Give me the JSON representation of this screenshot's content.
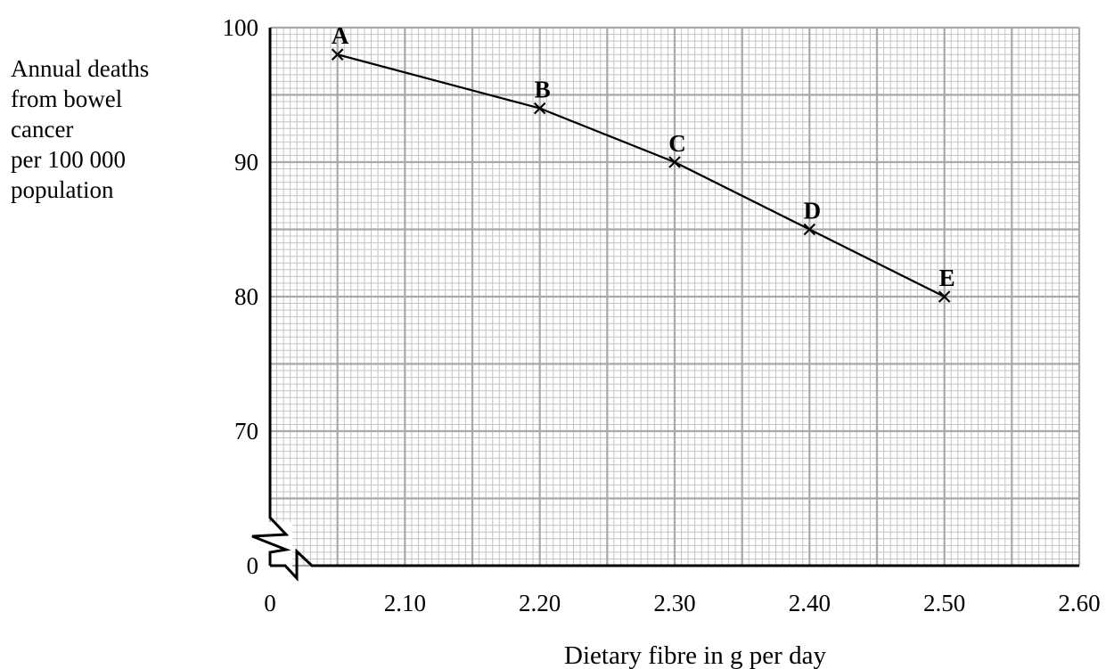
{
  "chart_data": {
    "type": "line",
    "title": "",
    "xlabel": "Dietary fibre in g per day",
    "ylabel_lines": [
      "Annual deaths",
      "from bowel",
      "cancer",
      "per 100 000",
      "population"
    ],
    "x_ticks": [
      "0",
      "2.10",
      "2.20",
      "2.30",
      "2.40",
      "2.50",
      "2.60"
    ],
    "x_tick_values": [
      2.0,
      2.1,
      2.2,
      2.3,
      2.4,
      2.5,
      2.6
    ],
    "y_ticks": [
      "0",
      "70",
      "80",
      "90",
      "100"
    ],
    "y_tick_values": [
      60,
      70,
      80,
      90,
      100
    ],
    "xlim": [
      2.0,
      2.6
    ],
    "ylim": [
      60,
      100
    ],
    "axis_break": true,
    "grid": true,
    "series": [
      {
        "marker": "cross",
        "points": [
          {
            "label": "A",
            "x": 2.05,
            "y": 98
          },
          {
            "label": "B",
            "x": 2.2,
            "y": 94
          },
          {
            "label": "C",
            "x": 2.3,
            "y": 90
          },
          {
            "label": "D",
            "x": 2.4,
            "y": 85
          },
          {
            "label": "E",
            "x": 2.5,
            "y": 80
          }
        ]
      }
    ]
  }
}
